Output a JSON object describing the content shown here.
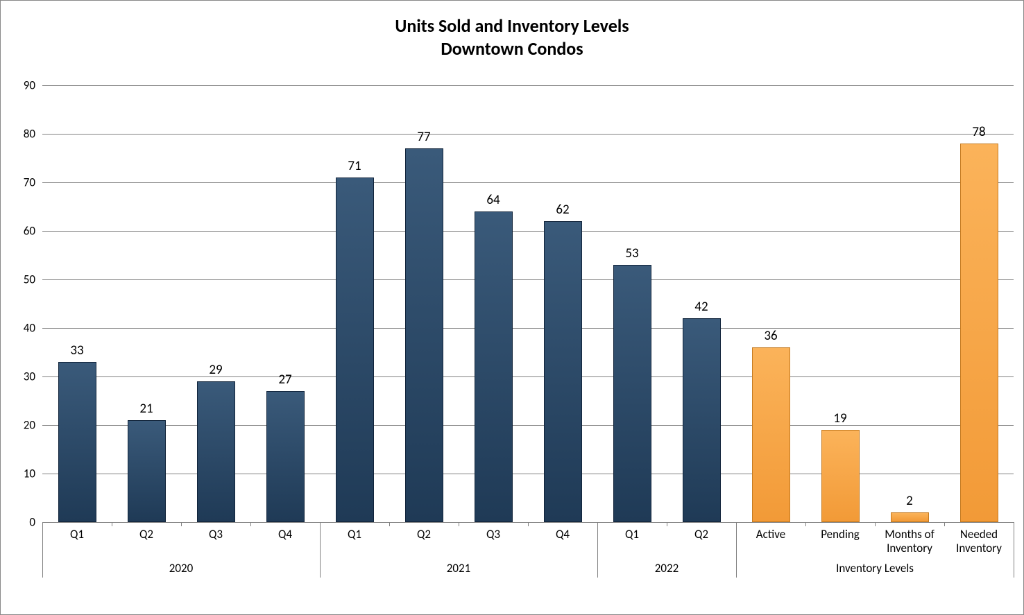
{
  "chart": {
    "type": "bar",
    "title_line1": "Units Sold and Inventory Levels",
    "title_line2": "Downtown Condos",
    "title_fontsize": 26,
    "label_fontsize": 19,
    "axis_fontsize": 17,
    "background_color": "#ffffff",
    "grid_color": "#808080",
    "bar_blue": "#1f3a56",
    "bar_orange": "#f29a37",
    "ylim": [
      0,
      90
    ],
    "ytick_step": 10,
    "yticks": [
      0,
      10,
      20,
      30,
      40,
      50,
      60,
      70,
      80,
      90
    ],
    "bars": [
      {
        "label": "Q1",
        "value": 33,
        "color": "blue",
        "group": "2020"
      },
      {
        "label": "Q2",
        "value": 21,
        "color": "blue",
        "group": "2020"
      },
      {
        "label": "Q3",
        "value": 29,
        "color": "blue",
        "group": "2020"
      },
      {
        "label": "Q4",
        "value": 27,
        "color": "blue",
        "group": "2020"
      },
      {
        "label": "Q1",
        "value": 71,
        "color": "blue",
        "group": "2021"
      },
      {
        "label": "Q2",
        "value": 77,
        "color": "blue",
        "group": "2021"
      },
      {
        "label": "Q3",
        "value": 64,
        "color": "blue",
        "group": "2021"
      },
      {
        "label": "Q4",
        "value": 62,
        "color": "blue",
        "group": "2021"
      },
      {
        "label": "Q1",
        "value": 53,
        "color": "blue",
        "group": "2022"
      },
      {
        "label": "Q2",
        "value": 42,
        "color": "blue",
        "group": "2022"
      },
      {
        "label": "Active",
        "value": 36,
        "color": "orange",
        "group": "Inventory Levels"
      },
      {
        "label": "Pending",
        "value": 19,
        "color": "orange",
        "group": "Inventory Levels"
      },
      {
        "label": "Months of Inventory",
        "value": 2,
        "color": "orange",
        "group": "Inventory Levels"
      },
      {
        "label": "Needed Inventory",
        "value": 78,
        "color": "orange",
        "group": "Inventory Levels"
      }
    ],
    "groups": [
      "2020",
      "2021",
      "2022",
      "Inventory Levels"
    ],
    "bar_width_ratio": 0.55
  }
}
